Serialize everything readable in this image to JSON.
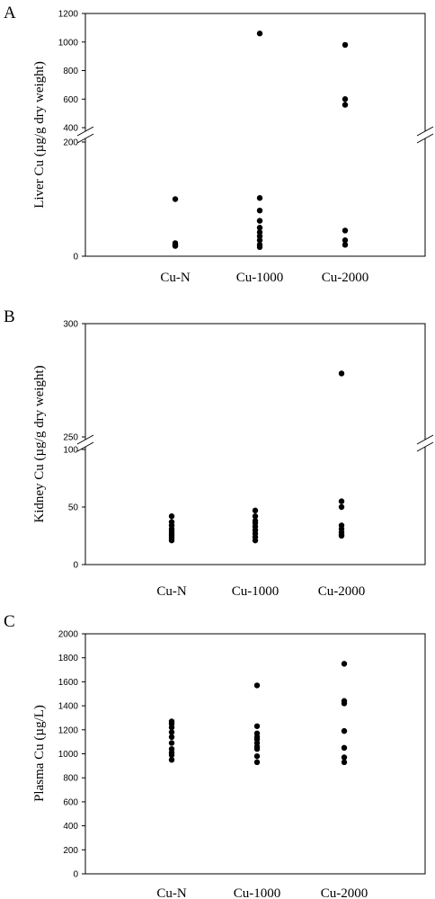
{
  "chart_data": [
    {
      "panel_letter": "A",
      "type": "scatter",
      "ylabel": "Liver Cu (µg/g dry weight)",
      "categories": [
        "Cu-N",
        "Cu-1000",
        "Cu-2000"
      ],
      "axis_break": {
        "lower_range": [
          0,
          200
        ],
        "upper_range": [
          400,
          1200
        ]
      },
      "y_ticks_lower": [
        "0",
        "200"
      ],
      "y_ticks_upper": [
        "400",
        "600",
        "800",
        "1000",
        "1200"
      ],
      "points": {
        "Cu-N": [
          100,
          23,
          20,
          18
        ],
        "Cu-1000": [
          1060,
          102,
          80,
          62,
          50,
          42,
          35,
          28,
          20,
          16
        ],
        "Cu-2000": [
          980,
          600,
          560,
          45,
          28,
          20
        ]
      }
    },
    {
      "panel_letter": "B",
      "type": "scatter",
      "ylabel": "Kidney Cu (µg/g dry weight)",
      "categories": [
        "Cu-N",
        "Cu-1000",
        "Cu-2000"
      ],
      "axis_break": {
        "lower_range": [
          0,
          100
        ],
        "upper_range": [
          250,
          300
        ]
      },
      "y_ticks_lower": [
        "0",
        "50",
        "100"
      ],
      "y_ticks_upper": [
        "250",
        "300"
      ],
      "points": {
        "Cu-N": [
          42,
          37,
          34,
          31,
          29,
          27,
          25,
          23,
          21
        ],
        "Cu-1000": [
          47,
          42,
          38,
          36,
          33,
          30,
          27,
          24,
          21
        ],
        "Cu-2000": [
          278,
          55,
          50,
          34,
          31,
          28,
          26,
          25
        ]
      }
    },
    {
      "panel_letter": "C",
      "type": "scatter",
      "ylabel": "Plasma Cu (µg/L)",
      "categories": [
        "Cu-N",
        "Cu-1000",
        "Cu-2000"
      ],
      "ylim": [
        0,
        2000
      ],
      "y_ticks": [
        "0",
        "200",
        "400",
        "600",
        "800",
        "1000",
        "1200",
        "1400",
        "1600",
        "1800",
        "2000"
      ],
      "points": {
        "Cu-N": [
          1270,
          1250,
          1220,
          1180,
          1140,
          1090,
          1040,
          1010,
          990,
          950
        ],
        "Cu-1000": [
          1570,
          1230,
          1170,
          1140,
          1120,
          1090,
          1060,
          1040,
          980,
          930
        ],
        "Cu-2000": [
          1750,
          1440,
          1420,
          1190,
          1050,
          970,
          930
        ]
      }
    }
  ]
}
